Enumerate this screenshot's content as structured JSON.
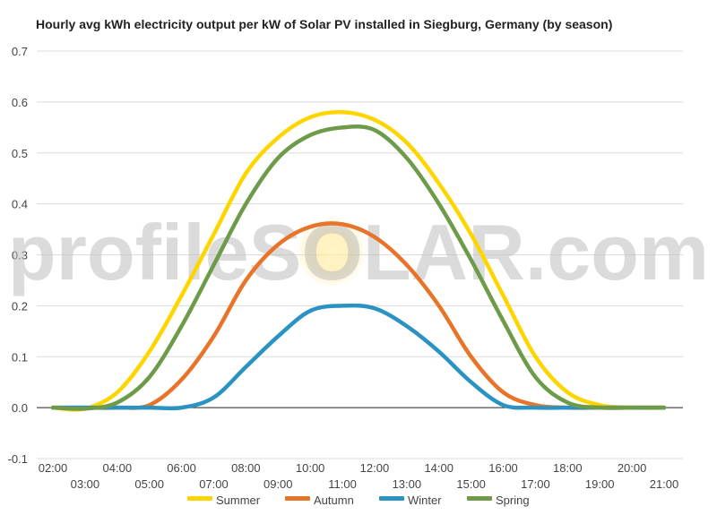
{
  "chart_data": {
    "type": "line",
    "title": "Hourly avg kWh electricity output per kW of Solar PV installed in Siegburg, Germany (by season)",
    "xlabel": "",
    "ylabel": "",
    "ylim": [
      -0.1,
      0.7
    ],
    "yticks": [
      "0.7",
      "0.6",
      "0.5",
      "0.4",
      "0.3",
      "0.2",
      "0.1",
      "0.0",
      "-0.1"
    ],
    "ytick_values": [
      0.7,
      0.6,
      0.5,
      0.4,
      0.3,
      0.2,
      0.1,
      0.0,
      -0.1
    ],
    "x": [
      "02:00",
      "03:00",
      "04:00",
      "05:00",
      "06:00",
      "07:00",
      "08:00",
      "09:00",
      "10:00",
      "11:00",
      "12:00",
      "13:00",
      "14:00",
      "15:00",
      "16:00",
      "17:00",
      "18:00",
      "19:00",
      "20:00",
      "21:00"
    ],
    "grid": true,
    "legend_position": "bottom",
    "watermark": "profileSOLAR.com",
    "series": [
      {
        "name": "Summer",
        "color": "#FFD500",
        "values": [
          0.0,
          -0.002,
          0.03,
          0.11,
          0.22,
          0.34,
          0.46,
          0.53,
          0.57,
          0.58,
          0.565,
          0.52,
          0.44,
          0.34,
          0.22,
          0.1,
          0.03,
          0.005,
          0.0,
          0.0
        ]
      },
      {
        "name": "Autumn",
        "color": "#E8742A",
        "values": [
          0.0,
          0.0,
          0.0,
          0.005,
          0.055,
          0.14,
          0.25,
          0.32,
          0.355,
          0.36,
          0.335,
          0.28,
          0.2,
          0.1,
          0.03,
          0.005,
          0.0,
          0.0,
          0.0,
          0.0
        ]
      },
      {
        "name": "Winter",
        "color": "#2A93C2",
        "values": [
          0.0,
          0.0,
          0.0,
          0.0,
          0.0,
          0.02,
          0.08,
          0.14,
          0.19,
          0.2,
          0.195,
          0.16,
          0.11,
          0.05,
          0.005,
          0.0,
          0.0,
          0.0,
          0.0,
          0.0
        ]
      },
      {
        "name": "Spring",
        "color": "#6E9B4A",
        "values": [
          0.0,
          -0.002,
          0.01,
          0.06,
          0.16,
          0.28,
          0.4,
          0.49,
          0.535,
          0.55,
          0.545,
          0.49,
          0.4,
          0.29,
          0.17,
          0.06,
          0.01,
          0.0,
          0.0,
          0.0
        ]
      }
    ]
  }
}
